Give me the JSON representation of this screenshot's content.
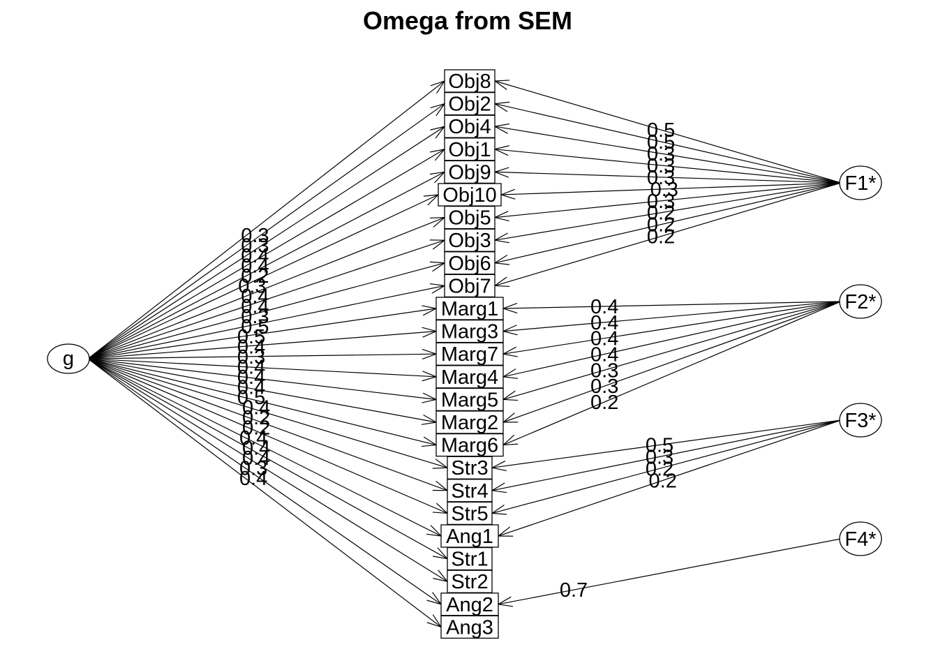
{
  "title": "Omega from SEM",
  "general_factor": {
    "id": "g",
    "label": "g"
  },
  "group_factors": [
    {
      "id": "F1",
      "label": "F1*"
    },
    {
      "id": "F2",
      "label": "F2*"
    },
    {
      "id": "F3",
      "label": "F3*"
    },
    {
      "id": "F4",
      "label": "F4*"
    }
  ],
  "items": [
    {
      "label": "Obj8",
      "g_loading": "0.3",
      "factor": "F1",
      "factor_loading": "0.5"
    },
    {
      "label": "Obj2",
      "g_loading": "0.3",
      "factor": "F1",
      "factor_loading": "0.5"
    },
    {
      "label": "Obj4",
      "g_loading": "0.4",
      "factor": "F1",
      "factor_loading": "0.3"
    },
    {
      "label": "Obj1",
      "g_loading": "0.4",
      "factor": "F1",
      "factor_loading": "0.3"
    },
    {
      "label": "Obj9",
      "g_loading": "0.2",
      "factor": "F1",
      "factor_loading": "0.3"
    },
    {
      "label": "Obj10",
      "g_loading": "0.3",
      "factor": "F1",
      "factor_loading": "0.3"
    },
    {
      "label": "Obj5",
      "g_loading": "0.4",
      "factor": "F1",
      "factor_loading": "0.3"
    },
    {
      "label": "Obj3",
      "g_loading": "0.4",
      "factor": "F1",
      "factor_loading": "0.2"
    },
    {
      "label": "Obj6",
      "g_loading": "0.3",
      "factor": "F1",
      "factor_loading": "0.2"
    },
    {
      "label": "Obj7",
      "g_loading": "0.5",
      "factor": "F1",
      "factor_loading": "0.2"
    },
    {
      "label": "Marg1",
      "g_loading": "0.5",
      "factor": "F2",
      "factor_loading": "0.4"
    },
    {
      "label": "Marg3",
      "g_loading": "0.4",
      "factor": "F2",
      "factor_loading": "0.4"
    },
    {
      "label": "Marg7",
      "g_loading": "0.3",
      "factor": "F2",
      "factor_loading": "0.4"
    },
    {
      "label": "Marg4",
      "g_loading": "0.4",
      "factor": "F2",
      "factor_loading": "0.4"
    },
    {
      "label": "Marg5",
      "g_loading": "0.4",
      "factor": "F2",
      "factor_loading": "0.3"
    },
    {
      "label": "Marg2",
      "g_loading": "0.4",
      "factor": "F2",
      "factor_loading": "0.3"
    },
    {
      "label": "Marg6",
      "g_loading": "0.5",
      "factor": "F2",
      "factor_loading": "0.2"
    },
    {
      "label": "Str3",
      "g_loading": "0.4",
      "factor": "F3",
      "factor_loading": "0.5"
    },
    {
      "label": "Str4",
      "g_loading": "0.2",
      "factor": "F3",
      "factor_loading": "0.3"
    },
    {
      "label": "Str5",
      "g_loading": "0.2",
      "factor": "F3",
      "factor_loading": "0.2"
    },
    {
      "label": "Ang1",
      "g_loading": "0.4",
      "factor": "F3",
      "factor_loading": "0.2"
    },
    {
      "label": "Str1",
      "g_loading": "0.4",
      "factor": null,
      "factor_loading": null
    },
    {
      "label": "Str2",
      "g_loading": "0.4",
      "factor": null,
      "factor_loading": null
    },
    {
      "label": "Ang2",
      "g_loading": "0.3",
      "factor": "F4",
      "factor_loading": "0.7"
    },
    {
      "label": "Ang3",
      "g_loading": "0.4",
      "factor": null,
      "factor_loading": null
    }
  ]
}
